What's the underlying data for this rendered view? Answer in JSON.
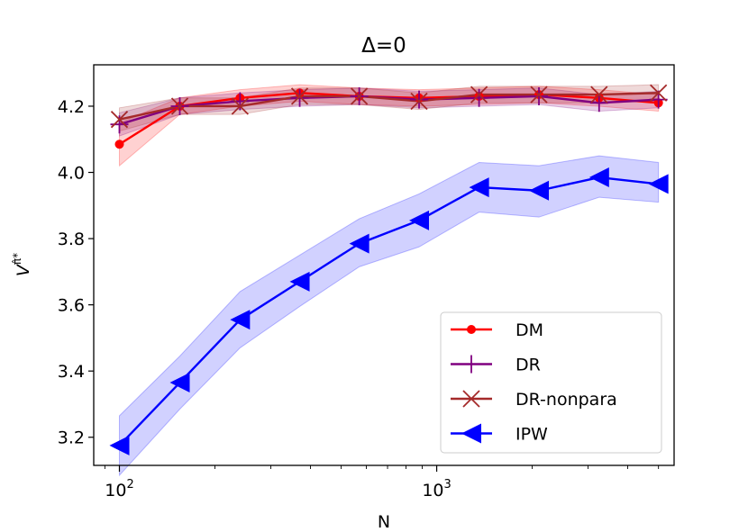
{
  "chart_data": {
    "type": "line",
    "title": "Δ=0",
    "xlabel": "N",
    "ylabel_base": "V",
    "ylabel_sup": "π̂*",
    "xscale": "log",
    "xlim": [
      83,
      5600
    ],
    "ylim": [
      3.115,
      4.325
    ],
    "x": [
      100,
      155,
      240,
      370,
      570,
      880,
      1360,
      2100,
      3250,
      5000
    ],
    "xticks": [
      {
        "value": 100,
        "base": "10",
        "exp": "2"
      },
      {
        "value": 1000,
        "base": "10",
        "exp": "3"
      }
    ],
    "yticks": [
      {
        "value": 3.2,
        "label": "3.2"
      },
      {
        "value": 3.4,
        "label": "3.4"
      },
      {
        "value": 3.6,
        "label": "3.6"
      },
      {
        "value": 3.8,
        "label": "3.8"
      },
      {
        "value": 4.0,
        "label": "4.0"
      },
      {
        "value": 4.2,
        "label": "4.2"
      }
    ],
    "legend_position": "lower-right",
    "series": [
      {
        "name": "DM",
        "color": "#ff0000",
        "marker": "circle",
        "values": [
          4.085,
          4.2,
          4.225,
          4.24,
          4.23,
          4.225,
          4.23,
          4.235,
          4.225,
          4.21
        ],
        "lower": [
          4.02,
          4.175,
          4.2,
          4.215,
          4.205,
          4.2,
          4.205,
          4.21,
          4.2,
          4.185
        ],
        "upper": [
          4.15,
          4.225,
          4.25,
          4.265,
          4.255,
          4.25,
          4.255,
          4.26,
          4.25,
          4.235
        ]
      },
      {
        "name": "DR",
        "color": "#800080",
        "marker": "plus",
        "values": [
          4.145,
          4.2,
          4.215,
          4.225,
          4.23,
          4.22,
          4.225,
          4.23,
          4.21,
          4.22
        ],
        "lower": [
          4.11,
          4.175,
          4.19,
          4.2,
          4.205,
          4.195,
          4.2,
          4.205,
          4.185,
          4.195
        ],
        "upper": [
          4.18,
          4.225,
          4.24,
          4.25,
          4.255,
          4.245,
          4.25,
          4.255,
          4.235,
          4.245
        ]
      },
      {
        "name": "DR-nonpara",
        "color": "#a52a2a",
        "marker": "x",
        "values": [
          4.16,
          4.2,
          4.2,
          4.23,
          4.23,
          4.215,
          4.235,
          4.235,
          4.235,
          4.24
        ],
        "lower": [
          4.125,
          4.175,
          4.175,
          4.205,
          4.205,
          4.19,
          4.21,
          4.21,
          4.21,
          4.215
        ],
        "upper": [
          4.195,
          4.225,
          4.225,
          4.255,
          4.255,
          4.24,
          4.26,
          4.26,
          4.26,
          4.265
        ]
      },
      {
        "name": "IPW",
        "color": "#0000ff",
        "marker": "triangle-left",
        "values": [
          3.175,
          3.365,
          3.555,
          3.67,
          3.785,
          3.855,
          3.955,
          3.945,
          3.985,
          3.965
        ],
        "lower": [
          3.085,
          3.285,
          3.47,
          3.595,
          3.715,
          3.775,
          3.88,
          3.865,
          3.925,
          3.91
        ],
        "upper": [
          3.265,
          3.445,
          3.64,
          3.75,
          3.86,
          3.935,
          4.03,
          4.02,
          4.05,
          4.03
        ]
      }
    ]
  }
}
